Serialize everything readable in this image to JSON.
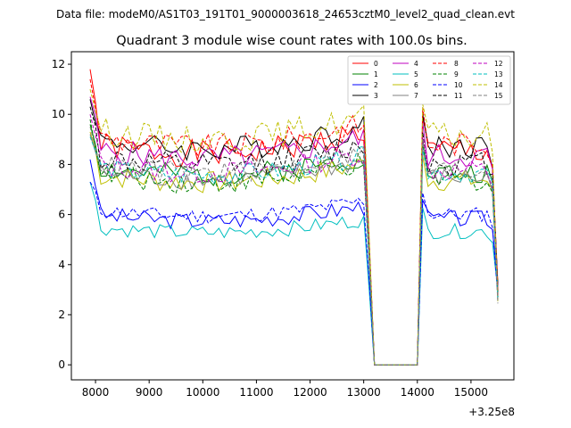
{
  "chart_data": {
    "type": "line",
    "suptitle": "Data file: modeM0/AS1T03_191T01_9000003618_24653cztM0_level2_quad_clean.evt",
    "title": "Quadrant 3 module wise count rates with 100.0s bins.",
    "xlabel": "",
    "ylabel": "",
    "offset_label": "+3.25e8",
    "xlim": [
      7550,
      15800
    ],
    "ylim": [
      -0.6,
      12.5
    ],
    "xticks": [
      8000,
      9000,
      10000,
      11000,
      12000,
      13000,
      14000,
      15000
    ],
    "xtick_labels": [
      "8000",
      "9000",
      "10000",
      "11000",
      "12000",
      "13000",
      "14000",
      "15000"
    ],
    "yticks": [
      0,
      2,
      4,
      6,
      8,
      10,
      12
    ],
    "ytick_labels": [
      "0",
      "2",
      "4",
      "6",
      "8",
      "10",
      "12"
    ],
    "grid": false,
    "legend_position": "top-right",
    "legend_columns": 4,
    "x": [
      7900,
      8000,
      8100,
      8200,
      8300,
      8400,
      8500,
      8600,
      8700,
      8800,
      8900,
      9000,
      9100,
      9200,
      9300,
      9400,
      9500,
      9600,
      9700,
      9800,
      9900,
      10000,
      10100,
      10200,
      10300,
      10400,
      10500,
      10600,
      10700,
      10800,
      10900,
      11000,
      11100,
      11200,
      11300,
      11400,
      11500,
      11600,
      11700,
      11800,
      11900,
      12000,
      12100,
      12200,
      12300,
      12400,
      12500,
      12600,
      12700,
      12800,
      12900,
      13000,
      13100,
      13200,
      13300,
      13400,
      13500,
      13600,
      13700,
      13800,
      13900,
      14000,
      14100,
      14200,
      14300,
      14400,
      14500,
      14600,
      14700,
      14800,
      14900,
      15000,
      15100,
      15200,
      15300,
      15400,
      15500
    ],
    "series": [
      {
        "name": "0",
        "color": "#ff0000",
        "dash": "solid",
        "base": 8.8,
        "start": 11.8,
        "amp": 0.55,
        "seed": 1
      },
      {
        "name": "1",
        "color": "#008000",
        "dash": "solid",
        "base": 7.9,
        "start": 9.6,
        "amp": 0.45,
        "seed": 2
      },
      {
        "name": "2",
        "color": "#0000ff",
        "dash": "solid",
        "base": 6.0,
        "start": 8.2,
        "amp": 0.35,
        "seed": 3
      },
      {
        "name": "3",
        "color": "#000000",
        "dash": "solid",
        "base": 9.0,
        "start": 10.6,
        "amp": 0.5,
        "seed": 4
      },
      {
        "name": "4",
        "color": "#bf00bf",
        "dash": "solid",
        "base": 8.6,
        "start": 10.7,
        "amp": 0.5,
        "seed": 5
      },
      {
        "name": "5",
        "color": "#00bfbf",
        "dash": "solid",
        "base": 5.5,
        "start": 7.3,
        "amp": 0.3,
        "seed": 6
      },
      {
        "name": "6",
        "color": "#bfbf00",
        "dash": "solid",
        "base": 7.6,
        "start": 9.3,
        "amp": 0.45,
        "seed": 7
      },
      {
        "name": "7",
        "color": "#808080",
        "dash": "solid",
        "base": 7.7,
        "start": 9.2,
        "amp": 0.4,
        "seed": 8
      },
      {
        "name": "8",
        "color": "#ff0000",
        "dash": "dashed",
        "base": 9.1,
        "start": 11.4,
        "amp": 0.5,
        "seed": 9
      },
      {
        "name": "9",
        "color": "#008000",
        "dash": "dashed",
        "base": 7.6,
        "start": 9.8,
        "amp": 0.45,
        "seed": 10
      },
      {
        "name": "10",
        "color": "#0000ff",
        "dash": "dashed",
        "base": 6.2,
        "start": 7.3,
        "amp": 0.3,
        "seed": 11
      },
      {
        "name": "11",
        "color": "#000000",
        "dash": "dashed",
        "base": 8.3,
        "start": 10.3,
        "amp": 0.5,
        "seed": 12
      },
      {
        "name": "12",
        "color": "#bf00bf",
        "dash": "dashed",
        "base": 8.0,
        "start": 10.0,
        "amp": 0.45,
        "seed": 13
      },
      {
        "name": "13",
        "color": "#00bfbf",
        "dash": "dashed",
        "base": 7.9,
        "start": 9.1,
        "amp": 0.4,
        "seed": 14
      },
      {
        "name": "14",
        "color": "#bfbf00",
        "dash": "dashed",
        "base": 9.4,
        "start": 11.0,
        "amp": 0.55,
        "seed": 15
      },
      {
        "name": "15",
        "color": "#808080",
        "dash": "dashed",
        "base": 8.0,
        "start": 9.5,
        "amp": 0.45,
        "seed": 16
      }
    ]
  }
}
